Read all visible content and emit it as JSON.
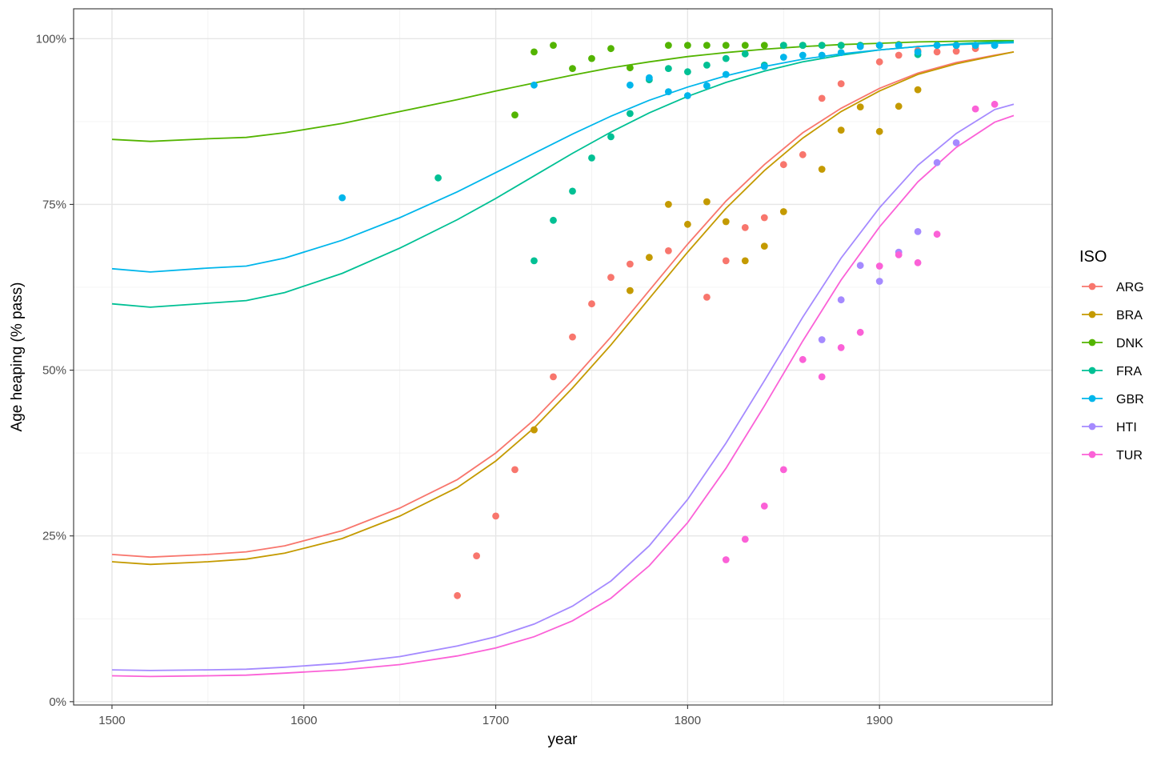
{
  "chart_data": {
    "type": "scatter",
    "title": "",
    "xlabel": "year",
    "ylabel": "Age heaping (% pass)",
    "xlim": [
      1480,
      1990
    ],
    "ylim": [
      -0.5,
      104.5
    ],
    "x_ticks": [
      1500,
      1600,
      1700,
      1800,
      1900
    ],
    "x_tick_labels": [
      "1500",
      "1600",
      "1700",
      "1800",
      "1900"
    ],
    "y_ticks": [
      0,
      25,
      50,
      75,
      100
    ],
    "y_tick_labels": [
      "0%",
      "25%",
      "50%",
      "75%",
      "100%"
    ],
    "grid": true,
    "legend": {
      "title": "ISO",
      "position": "right"
    },
    "fit_x": [
      1500,
      1520,
      1550,
      1570,
      1590,
      1620,
      1650,
      1680,
      1700,
      1720,
      1740,
      1760,
      1780,
      1800,
      1820,
      1840,
      1860,
      1880,
      1900,
      1920,
      1940,
      1960,
      1970
    ],
    "series": [
      {
        "name": "ARG",
        "color": "#F8766D",
        "points": [
          [
            1680,
            16
          ],
          [
            1690,
            22
          ],
          [
            1700,
            28
          ],
          [
            1710,
            35
          ],
          [
            1720,
            41
          ],
          [
            1730,
            49
          ],
          [
            1740,
            55
          ],
          [
            1750,
            60
          ],
          [
            1760,
            64
          ],
          [
            1770,
            66
          ],
          [
            1790,
            68
          ],
          [
            1810,
            61
          ],
          [
            1820,
            66.5
          ],
          [
            1830,
            71.5
          ],
          [
            1840,
            73
          ],
          [
            1850,
            81
          ],
          [
            1860,
            82.5
          ],
          [
            1870,
            91
          ],
          [
            1880,
            93.2
          ],
          [
            1900,
            96.5
          ],
          [
            1910,
            97.5
          ],
          [
            1920,
            98.2
          ],
          [
            1930,
            98
          ],
          [
            1940,
            98.1
          ],
          [
            1950,
            98.5
          ]
        ],
        "fit": [
          22.2,
          21.8,
          22.2,
          22.6,
          23.5,
          25.8,
          29.2,
          33.5,
          37.5,
          42.5,
          48.5,
          55,
          62,
          69,
          75.5,
          81,
          85.8,
          89.5,
          92.5,
          94.8,
          96.4,
          97.5,
          98
        ]
      },
      {
        "name": "BRA",
        "color": "#C49A00",
        "points": [
          [
            1720,
            41
          ],
          [
            1770,
            62
          ],
          [
            1780,
            67
          ],
          [
            1790,
            75
          ],
          [
            1800,
            72
          ],
          [
            1810,
            75.4
          ],
          [
            1820,
            72.4
          ],
          [
            1830,
            66.5
          ],
          [
            1840,
            68.7
          ],
          [
            1850,
            73.9
          ],
          [
            1870,
            80.3
          ],
          [
            1880,
            86.2
          ],
          [
            1890,
            89.7
          ],
          [
            1900,
            86
          ],
          [
            1910,
            89.8
          ],
          [
            1920,
            92.3
          ]
        ],
        "fit": [
          21.1,
          20.7,
          21.1,
          21.5,
          22.4,
          24.6,
          28,
          32.3,
          36.3,
          41.3,
          47.3,
          53.8,
          60.8,
          67.8,
          74.4,
          80.1,
          85,
          89,
          92.1,
          94.6,
          96.2,
          97.4,
          98
        ]
      },
      {
        "name": "DNK",
        "color": "#53B400",
        "points": [
          [
            1710,
            88.5
          ],
          [
            1720,
            98
          ],
          [
            1730,
            99
          ],
          [
            1740,
            95.5
          ],
          [
            1750,
            97
          ],
          [
            1760,
            98.5
          ],
          [
            1770,
            95.6
          ],
          [
            1790,
            99
          ],
          [
            1800,
            99
          ],
          [
            1810,
            99
          ],
          [
            1820,
            99
          ],
          [
            1830,
            99
          ],
          [
            1840,
            99
          ],
          [
            1850,
            99
          ],
          [
            1860,
            99
          ],
          [
            1870,
            99
          ],
          [
            1880,
            99
          ],
          [
            1890,
            99
          ],
          [
            1900,
            99
          ],
          [
            1910,
            99.1
          ]
        ],
        "fit": [
          84.8,
          84.5,
          84.9,
          85.1,
          85.8,
          87.2,
          89,
          90.8,
          92.1,
          93.3,
          94.5,
          95.6,
          96.5,
          97.3,
          97.9,
          98.4,
          98.8,
          99.1,
          99.3,
          99.5,
          99.6,
          99.7,
          99.7
        ]
      },
      {
        "name": "FRA",
        "color": "#00C094",
        "points": [
          [
            1670,
            79
          ],
          [
            1720,
            66.5
          ],
          [
            1730,
            72.6
          ],
          [
            1740,
            77
          ],
          [
            1750,
            82
          ],
          [
            1760,
            85.2
          ],
          [
            1770,
            88.7
          ],
          [
            1780,
            93.8
          ],
          [
            1790,
            95.5
          ],
          [
            1800,
            95
          ],
          [
            1810,
            96
          ],
          [
            1820,
            97
          ],
          [
            1830,
            97.7
          ],
          [
            1840,
            96
          ],
          [
            1850,
            99
          ],
          [
            1860,
            99
          ],
          [
            1870,
            99
          ],
          [
            1880,
            99
          ],
          [
            1890,
            99
          ],
          [
            1900,
            99
          ],
          [
            1910,
            99
          ],
          [
            1920,
            97.6
          ],
          [
            1930,
            99
          ],
          [
            1940,
            99
          ],
          [
            1950,
            99
          ],
          [
            1960,
            99
          ]
        ],
        "fit": [
          60,
          59.5,
          60.1,
          60.5,
          61.7,
          64.6,
          68.4,
          72.7,
          75.9,
          79.3,
          82.7,
          85.9,
          88.8,
          91.3,
          93.4,
          95.1,
          96.5,
          97.5,
          98.3,
          98.8,
          99.2,
          99.5,
          99.6
        ]
      },
      {
        "name": "GBR",
        "color": "#00B6EB",
        "points": [
          [
            1620,
            76
          ],
          [
            1720,
            93
          ],
          [
            1770,
            93
          ],
          [
            1780,
            94.1
          ],
          [
            1790,
            92
          ],
          [
            1800,
            91.4
          ],
          [
            1810,
            92.9
          ],
          [
            1820,
            94.6
          ],
          [
            1840,
            95.8
          ],
          [
            1850,
            97.2
          ],
          [
            1860,
            97.5
          ],
          [
            1870,
            97.5
          ],
          [
            1880,
            97.9
          ],
          [
            1890,
            98.8
          ],
          [
            1900,
            99
          ],
          [
            1910,
            99
          ],
          [
            1920,
            98
          ],
          [
            1930,
            99
          ],
          [
            1940,
            99
          ],
          [
            1950,
            99
          ],
          [
            1960,
            99
          ]
        ],
        "fit": [
          65.3,
          64.8,
          65.4,
          65.7,
          66.9,
          69.6,
          73,
          76.9,
          79.8,
          82.7,
          85.6,
          88.3,
          90.7,
          92.7,
          94.4,
          95.8,
          96.9,
          97.7,
          98.3,
          98.8,
          99.1,
          99.3,
          99.4
        ]
      },
      {
        "name": "HTI",
        "color": "#A58AFF",
        "points": [
          [
            1870,
            54.6
          ],
          [
            1880,
            60.6
          ],
          [
            1890,
            65.8
          ],
          [
            1900,
            63.4
          ],
          [
            1910,
            67.8
          ],
          [
            1920,
            70.9
          ],
          [
            1930,
            81.3
          ],
          [
            1940,
            84.3
          ]
        ],
        "fit": [
          4.8,
          4.7,
          4.8,
          4.9,
          5.2,
          5.8,
          6.8,
          8.4,
          9.8,
          11.7,
          14.4,
          18.2,
          23.5,
          30.5,
          39,
          48.4,
          58,
          66.9,
          74.5,
          80.9,
          85.7,
          89.3,
          90.1
        ]
      },
      {
        "name": "TUR",
        "color": "#FB61D7",
        "points": [
          [
            1820,
            21.4
          ],
          [
            1830,
            24.5
          ],
          [
            1840,
            29.5
          ],
          [
            1850,
            35
          ],
          [
            1860,
            51.6
          ],
          [
            1870,
            49
          ],
          [
            1880,
            53.4
          ],
          [
            1890,
            55.7
          ],
          [
            1900,
            65.7
          ],
          [
            1910,
            67.4
          ],
          [
            1920,
            66.2
          ],
          [
            1930,
            70.5
          ],
          [
            1950,
            89.4
          ],
          [
            1960,
            90.1
          ]
        ],
        "fit": [
          3.9,
          3.8,
          3.9,
          4,
          4.3,
          4.8,
          5.6,
          6.9,
          8.1,
          9.8,
          12.2,
          15.6,
          20.5,
          27,
          35.2,
          44.6,
          54.4,
          63.6,
          71.6,
          78.4,
          83.6,
          87.4,
          88.4
        ]
      }
    ]
  }
}
